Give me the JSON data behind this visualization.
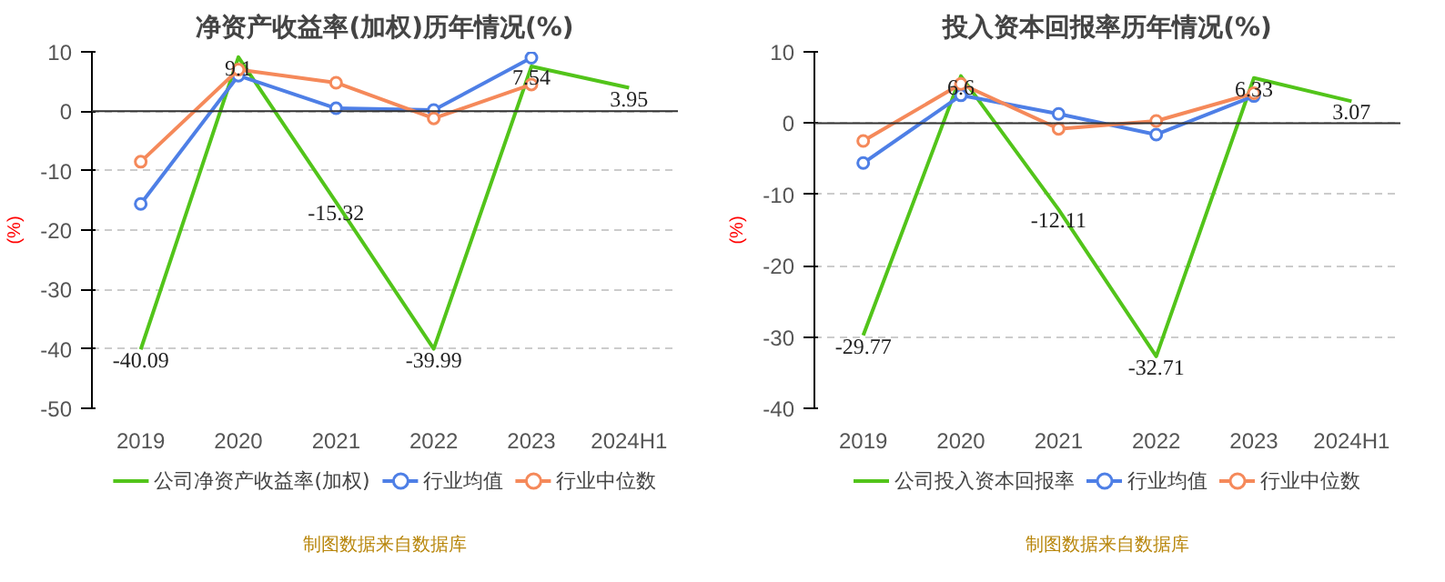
{
  "chart_data": [
    {
      "type": "line",
      "title": "净资产收益率(加权)历年情况(%)",
      "ylabel": "(%)",
      "categories": [
        "2019",
        "2020",
        "2021",
        "2022",
        "2023",
        "2024H1"
      ],
      "ylim": [
        -50,
        10
      ],
      "yticks": [
        -50,
        -40,
        -30,
        -20,
        -10,
        0,
        10
      ],
      "grid": "y",
      "legend": "bottom",
      "annotations": [
        "制图数据来自数据库"
      ],
      "series": [
        {
          "name": "公司净资产收益率(加权)",
          "color": "#52c41a",
          "marker": "none",
          "values": [
            -40.09,
            9.1,
            -15.32,
            -39.99,
            7.54,
            3.95
          ],
          "value_labels": [
            "-40.09",
            "9.1",
            "-15.32",
            "-39.99",
            "7.54",
            "3.95"
          ]
        },
        {
          "name": "行业均值",
          "color": "#4e7fe6",
          "marker": "circle",
          "values": [
            -15.6,
            6,
            0.5,
            0.2,
            9,
            null
          ]
        },
        {
          "name": "行业中位数",
          "color": "#f5895a",
          "marker": "circle",
          "values": [
            -8.5,
            7,
            4.8,
            -1.2,
            4.5,
            null
          ]
        }
      ]
    },
    {
      "type": "line",
      "title": "投入资本回报率历年情况(%)",
      "ylabel": "(%)",
      "categories": [
        "2019",
        "2020",
        "2021",
        "2022",
        "2023",
        "2024H1"
      ],
      "ylim": [
        -40,
        10
      ],
      "yticks": [
        -40,
        -30,
        -20,
        -10,
        0,
        10
      ],
      "grid": "y",
      "legend": "bottom",
      "annotations": [
        "制图数据来自数据库"
      ],
      "series": [
        {
          "name": "公司投入资本回报率",
          "color": "#52c41a",
          "marker": "none",
          "values": [
            -29.77,
            6.6,
            -12.11,
            -32.71,
            6.33,
            3.07
          ],
          "value_labels": [
            "-29.77",
            "6.6",
            "-12.11",
            "-32.71",
            "6.33",
            "3.07"
          ]
        },
        {
          "name": "行业均值",
          "color": "#4e7fe6",
          "marker": "circle",
          "values": [
            -5.6,
            3.9,
            1.3,
            -1.6,
            3.8,
            null
          ]
        },
        {
          "name": "行业中位数",
          "color": "#f5895a",
          "marker": "circle",
          "values": [
            -2.5,
            5.5,
            -0.8,
            0.3,
            4.2,
            null
          ]
        }
      ]
    }
  ]
}
